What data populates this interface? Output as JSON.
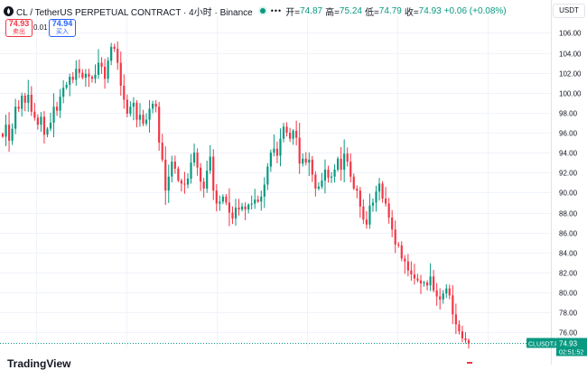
{
  "header": {
    "symbol": "CL / TetherUS PERPETUAL CONTRACT · 4小时 · Binance",
    "more": "•••",
    "o_label": "开=",
    "o_value": "74.87",
    "h_label": "高=",
    "h_value": "75.24",
    "l_label": "低=",
    "l_value": "74.79",
    "c_label": "收=",
    "c_value": "74.93",
    "change": "+0.06 (+0.08%)"
  },
  "trade": {
    "sell_price": "74.93",
    "sell_label": "卖出",
    "spread": "0.01",
    "buy_price": "74.94",
    "buy_label": "买入"
  },
  "currency": "USDT",
  "watermark": "TradingView",
  "colors": {
    "up": "#089981",
    "down": "#f23645",
    "grid": "#f0f3fa"
  },
  "chart_data": {
    "type": "candlestick",
    "y_ticks": [
      76,
      78,
      80,
      82,
      84,
      86,
      88,
      90,
      92,
      94,
      96,
      98,
      100,
      102,
      104,
      106
    ],
    "ylim": [
      74.4,
      107.3
    ],
    "last_price_label": {
      "symbol": "CLUSDT.P",
      "price": "74.93",
      "countdown": "02:51:52"
    },
    "closes": [
      95.6,
      96.8,
      95.2,
      96.4,
      98.6,
      98.4,
      99.7,
      99.0,
      99.8,
      98.1,
      97.5,
      96.8,
      97.6,
      95.8,
      96.4,
      97.0,
      98.6,
      98.2,
      99.6,
      100.5,
      100.8,
      101.6,
      101.3,
      102.4,
      102.0,
      101.5,
      101.9,
      101.6,
      101.4,
      101.8,
      103.0,
      102.6,
      101.4,
      103.2,
      104.6,
      104.4,
      103.0,
      100.7,
      99.3,
      97.9,
      98.6,
      99.0,
      97.3,
      97.8,
      96.9,
      97.3,
      98.4,
      98.9,
      98.6,
      95.0,
      93.3,
      90.2,
      91.6,
      93.1,
      92.4,
      91.2,
      90.9,
      90.8,
      91.4,
      93.0,
      94.0,
      92.5,
      91.1,
      90.4,
      92.2,
      93.6,
      90.2,
      88.9,
      89.1,
      89.6,
      89.0,
      88.0,
      87.4,
      88.5,
      88.3,
      88.6,
      88.3,
      88.8,
      88.9,
      89.3,
      89.1,
      89.6,
      90.8,
      92.6,
      94.0,
      94.4,
      93.7,
      95.4,
      96.6,
      96.0,
      95.4,
      96.2,
      95.5,
      92.9,
      93.4,
      93.0,
      93.3,
      91.8,
      90.4,
      90.6,
      91.2,
      92.3,
      91.5,
      91.6,
      92.3,
      93.4,
      92.3,
      93.9,
      93.1,
      91.6,
      90.4,
      90.2,
      88.6,
      87.3,
      86.8,
      88.7,
      89.0,
      90.1,
      90.9,
      89.4,
      88.9,
      87.5,
      86.3,
      84.8,
      84.7,
      83.4,
      83.1,
      82.2,
      81.8,
      81.4,
      81.2,
      80.9,
      81.0,
      80.7,
      81.6,
      80.2,
      79.6,
      79.3,
      79.9,
      80.4,
      79.7,
      77.8,
      76.8,
      76.1,
      75.4,
      75.2,
      74.9
    ]
  }
}
